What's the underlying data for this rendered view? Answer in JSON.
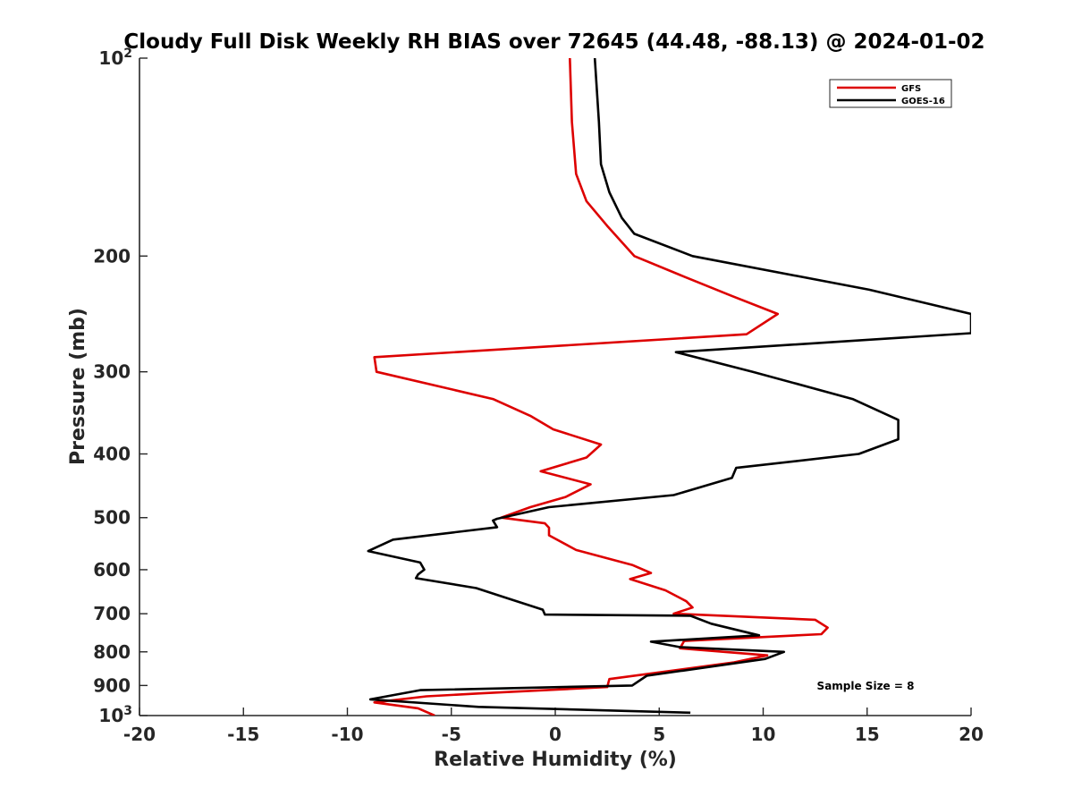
{
  "chart_data": {
    "type": "line",
    "title": "Cloudy Full Disk Weekly RH BIAS over 72645 (44.48, -88.13) @ 2024-01-02",
    "xlabel": "Relative Humidity (%)",
    "ylabel": "Pressure (mb)",
    "xlim": [
      -20,
      20
    ],
    "ylim": [
      100,
      1000
    ],
    "y_scale": "log",
    "y_reversed": true,
    "grid": false,
    "legend_position": "top-right",
    "x_ticks": [
      "-20",
      "-15",
      "-10",
      "-5",
      "0",
      "5",
      "10",
      "15",
      "20"
    ],
    "y_ticks": [
      {
        "value": 100,
        "label": "10",
        "sup": "2"
      },
      {
        "value": 200,
        "label": "200",
        "sup": ""
      },
      {
        "value": 300,
        "label": "300",
        "sup": ""
      },
      {
        "value": 400,
        "label": "400",
        "sup": ""
      },
      {
        "value": 500,
        "label": "500",
        "sup": ""
      },
      {
        "value": 600,
        "label": "600",
        "sup": ""
      },
      {
        "value": 700,
        "label": "700",
        "sup": ""
      },
      {
        "value": 800,
        "label": "800",
        "sup": ""
      },
      {
        "value": 900,
        "label": "900",
        "sup": ""
      },
      {
        "value": 1000,
        "label": "10",
        "sup": "3"
      }
    ],
    "annotation": "Sample Size = 8",
    "series": [
      {
        "name": "GFS",
        "color": "#dd0000",
        "points": [
          [
            0.7,
            100
          ],
          [
            0.8,
            125
          ],
          [
            1.0,
            150
          ],
          [
            1.5,
            165
          ],
          [
            2.5,
            180
          ],
          [
            3.8,
            200
          ],
          [
            6.2,
            215
          ],
          [
            8.5,
            230
          ],
          [
            10.7,
            245
          ],
          [
            9.2,
            263
          ],
          [
            -8.7,
            285
          ],
          [
            -8.6,
            300
          ],
          [
            -3.0,
            330
          ],
          [
            -1.2,
            350
          ],
          [
            -0.1,
            367
          ],
          [
            2.2,
            387
          ],
          [
            1.5,
            405
          ],
          [
            -0.7,
            425
          ],
          [
            1.7,
            445
          ],
          [
            0.5,
            465
          ],
          [
            -1.2,
            482
          ],
          [
            -2.6,
            500
          ],
          [
            -0.5,
            510
          ],
          [
            -0.3,
            518
          ],
          [
            -0.3,
            532
          ],
          [
            1.0,
            560
          ],
          [
            3.7,
            590
          ],
          [
            4.6,
            607
          ],
          [
            3.6,
            620
          ],
          [
            5.3,
            645
          ],
          [
            6.3,
            670
          ],
          [
            6.6,
            685
          ],
          [
            5.7,
            700
          ],
          [
            12.5,
            715
          ],
          [
            13.1,
            735
          ],
          [
            12.8,
            752
          ],
          [
            6.2,
            770
          ],
          [
            6.0,
            790
          ],
          [
            10.2,
            810
          ],
          [
            8.6,
            830
          ],
          [
            2.6,
            880
          ],
          [
            2.5,
            905
          ],
          [
            -3.5,
            925
          ],
          [
            -6.2,
            935
          ],
          [
            -8.7,
            955
          ],
          [
            -6.6,
            975
          ],
          [
            -5.8,
            1000
          ]
        ]
      },
      {
        "name": "GOES-16",
        "color": "#000000",
        "points": [
          [
            1.9,
            100
          ],
          [
            2.1,
            125
          ],
          [
            2.2,
            145
          ],
          [
            2.6,
            160
          ],
          [
            3.2,
            175
          ],
          [
            3.8,
            185
          ],
          [
            6.6,
            200
          ],
          [
            15.1,
            225
          ],
          [
            20.0,
            245
          ],
          [
            20.0,
            262
          ],
          [
            5.8,
            280
          ],
          [
            9.5,
            300
          ],
          [
            14.3,
            330
          ],
          [
            16.5,
            355
          ],
          [
            16.5,
            380
          ],
          [
            14.6,
            400
          ],
          [
            8.7,
            420
          ],
          [
            8.5,
            435
          ],
          [
            5.7,
            462
          ],
          [
            -0.3,
            482
          ],
          [
            -2.8,
            502
          ],
          [
            -3.0,
            505
          ],
          [
            -2.8,
            517
          ],
          [
            -7.8,
            540
          ],
          [
            -9.0,
            562
          ],
          [
            -6.5,
            585
          ],
          [
            -6.3,
            600
          ],
          [
            -6.6,
            610
          ],
          [
            -6.7,
            618
          ],
          [
            -3.8,
            640
          ],
          [
            -2.5,
            660
          ],
          [
            -0.6,
            690
          ],
          [
            -0.5,
            702
          ],
          [
            6.5,
            705
          ],
          [
            7.5,
            725
          ],
          [
            9.8,
            755
          ],
          [
            4.6,
            772
          ],
          [
            6.0,
            787
          ],
          [
            11.0,
            800
          ],
          [
            10.1,
            820
          ],
          [
            4.4,
            870
          ],
          [
            3.7,
            900
          ],
          [
            -6.5,
            915
          ],
          [
            -8.9,
            945
          ],
          [
            -3.7,
            970
          ],
          [
            6.5,
            990
          ]
        ]
      }
    ]
  }
}
